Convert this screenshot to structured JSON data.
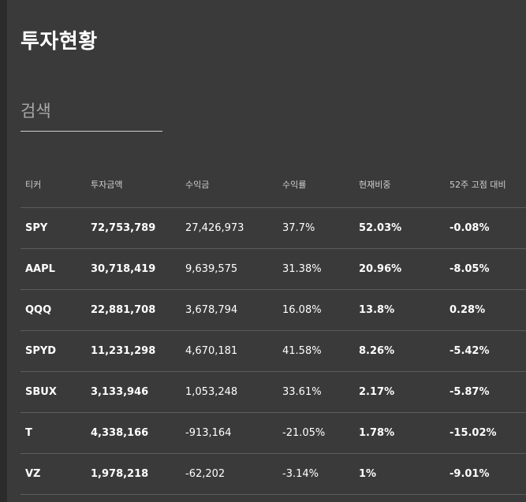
{
  "page": {
    "title": "투자현황"
  },
  "search": {
    "placeholder": "검색",
    "value": ""
  },
  "colors": {
    "background": "#3a3a3a",
    "positive": "#2bc66b",
    "negative": "#e4424d",
    "text": "#ffffff"
  },
  "table": {
    "headers": [
      "티커",
      "투자금액",
      "수익금",
      "수익률",
      "현재비중",
      "52주 고점 대비"
    ],
    "rows": [
      {
        "ticker": "SPY",
        "amount": "72,753,789",
        "profit": "27,426,973",
        "rate": "37.7%",
        "weight": "52.03%",
        "from_high": "-0.08%",
        "direction": "positive"
      },
      {
        "ticker": "AAPL",
        "amount": "30,718,419",
        "profit": "9,639,575",
        "rate": "31.38%",
        "weight": "20.96%",
        "from_high": "-8.05%",
        "direction": "positive"
      },
      {
        "ticker": "QQQ",
        "amount": "22,881,708",
        "profit": "3,678,794",
        "rate": "16.08%",
        "weight": "13.8%",
        "from_high": "0.28%",
        "direction": "positive"
      },
      {
        "ticker": "SPYD",
        "amount": "11,231,298",
        "profit": "4,670,181",
        "rate": "41.58%",
        "weight": "8.26%",
        "from_high": "-5.42%",
        "direction": "positive"
      },
      {
        "ticker": "SBUX",
        "amount": "3,133,946",
        "profit": "1,053,248",
        "rate": "33.61%",
        "weight": "2.17%",
        "from_high": "-5.87%",
        "direction": "positive"
      },
      {
        "ticker": "T",
        "amount": "4,338,166",
        "profit": "-913,164",
        "rate": "-21.05%",
        "weight": "1.78%",
        "from_high": "-15.02%",
        "direction": "negative"
      },
      {
        "ticker": "VZ",
        "amount": "1,978,218",
        "profit": "-62,202",
        "rate": "-3.14%",
        "weight": "1%",
        "from_high": "-9.01%",
        "direction": "negative"
      }
    ]
  }
}
